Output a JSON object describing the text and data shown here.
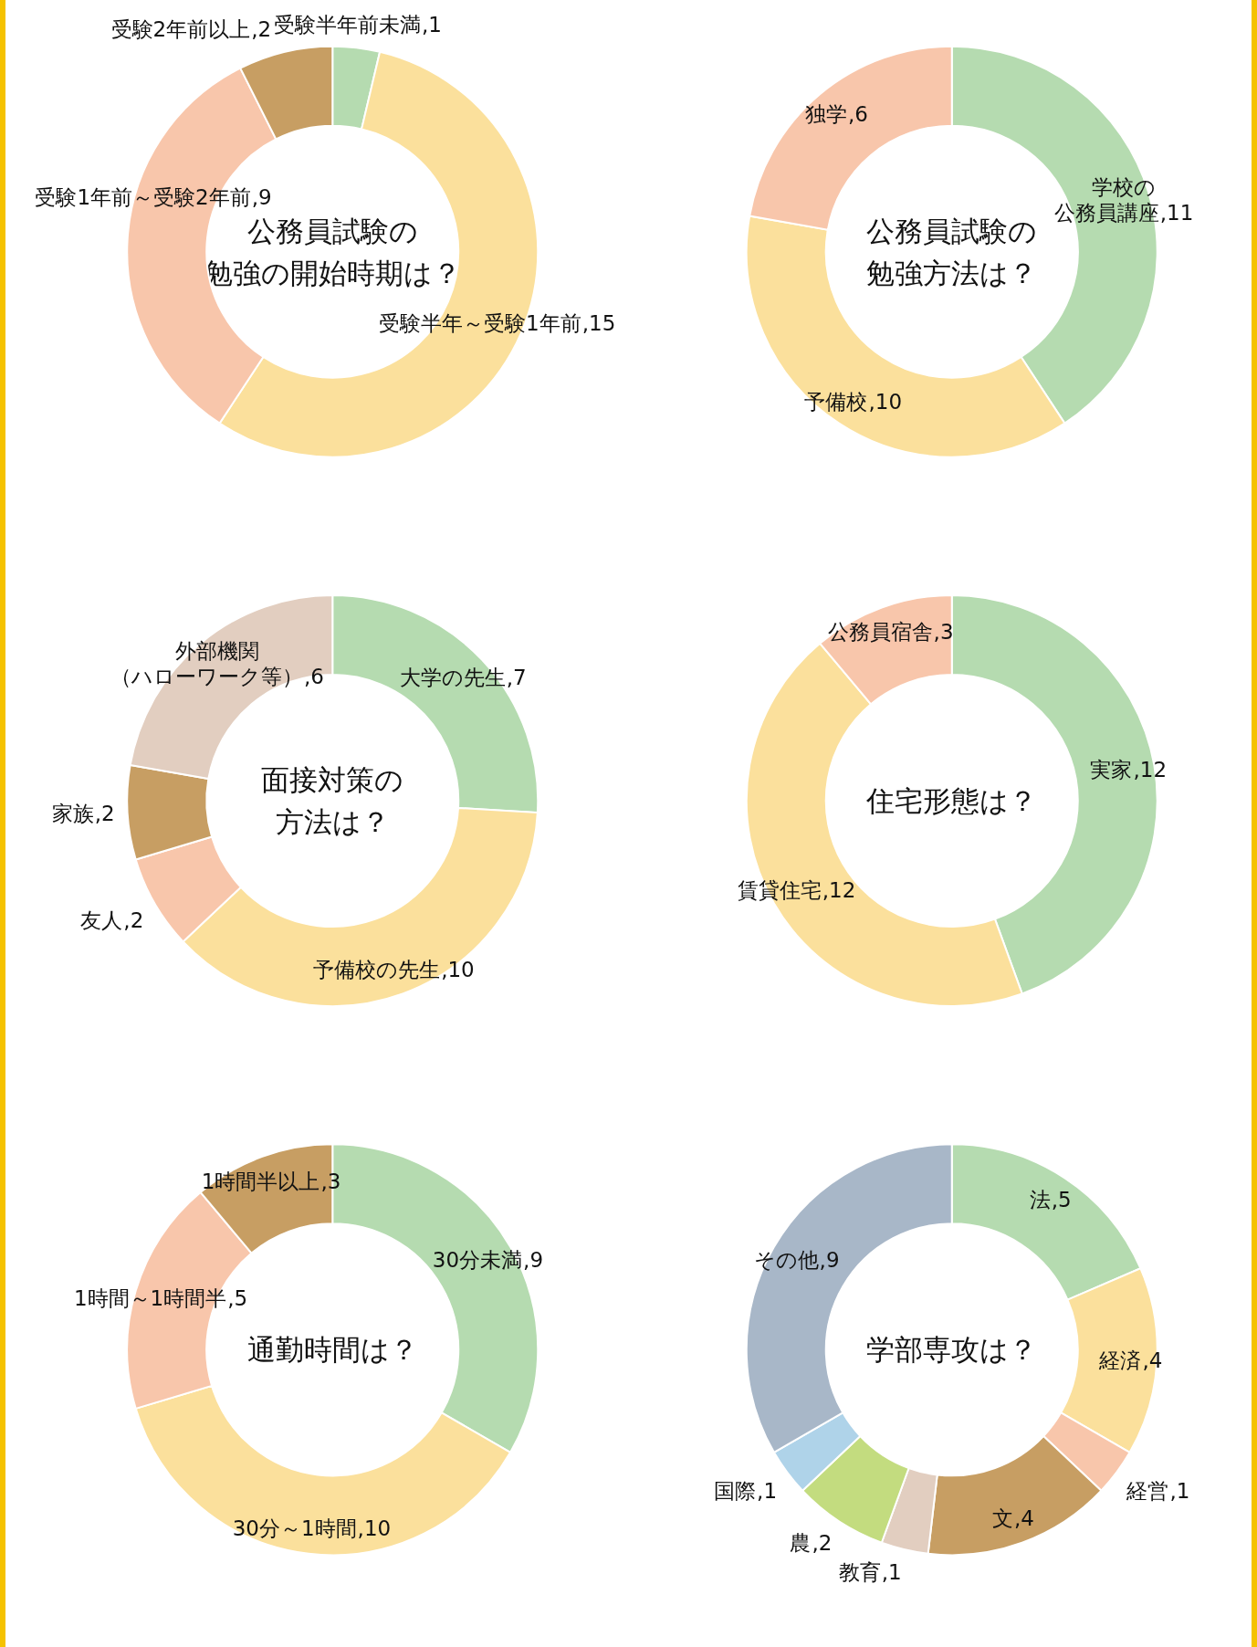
{
  "chart_data": [
    {
      "type": "donut",
      "title": "公務員試験の勉強の開始時期は？",
      "categories": [
        "受験半年前未満",
        "受験半年～受験1年前",
        "受験1年前～受験2年前",
        "受験2年前以上"
      ],
      "values": [
        1,
        15,
        9,
        2
      ],
      "value_labels": [
        ",1",
        ",15",
        ",9",
        ",2"
      ],
      "colors": [
        "#b5dbb0",
        "#fbe09c",
        "#f8c6ab",
        "#c79e63"
      ]
    },
    {
      "type": "donut",
      "title": "公務員試験の勉強方法は？",
      "categories": [
        "学校の公務員講座",
        "予備校",
        "独学"
      ],
      "values": [
        11,
        10,
        6
      ],
      "value_labels": [
        ",11",
        ",10",
        ",6"
      ],
      "colors": [
        "#b5dbb0",
        "#fbe09c",
        "#f8c6ab"
      ]
    },
    {
      "type": "donut",
      "title": "面接対策の方法は？",
      "categories": [
        "大学の先生",
        "予備校の先生",
        "友人",
        "家族",
        "外部機関（ハローワーク等）"
      ],
      "values": [
        7,
        10,
        2,
        2,
        6
      ],
      "value_labels": [
        ",7",
        ",10",
        ",2",
        ",2",
        ",6"
      ],
      "colors": [
        "#b5dbb0",
        "#fbe09c",
        "#f8c6ab",
        "#c79e63",
        "#e2cec0"
      ]
    },
    {
      "type": "donut",
      "title": "住宅形態は？",
      "categories": [
        "実家",
        "賃貸住宅",
        "公務員宿舎"
      ],
      "values": [
        12,
        12,
        3
      ],
      "value_labels": [
        ",12",
        ",12",
        ",3"
      ],
      "colors": [
        "#b5dbb0",
        "#fbe09c",
        "#f8c6ab"
      ]
    },
    {
      "type": "donut",
      "title": "通勤時間は？",
      "categories": [
        "30分未満",
        "30分～1時間",
        "1時間～1時間半",
        "1時間半以上"
      ],
      "values": [
        9,
        10,
        5,
        3
      ],
      "value_labels": [
        ",9",
        ",10",
        ",5",
        ",3"
      ],
      "colors": [
        "#b5dbb0",
        "#fbe09c",
        "#f8c6ab",
        "#c79e63"
      ]
    },
    {
      "type": "donut",
      "title": "学部専攻は？",
      "categories": [
        "法",
        "経済",
        "経営",
        "文",
        "教育",
        "農",
        "国際",
        "その他"
      ],
      "values": [
        5,
        4,
        1,
        4,
        1,
        2,
        1,
        9
      ],
      "value_labels": [
        ",5",
        ",4",
        ",1",
        ",4",
        ",1",
        ",2",
        ",1",
        ",9"
      ],
      "colors": [
        "#b5dbb0",
        "#fbe09c",
        "#f8c6ab",
        "#c79e63",
        "#e2cec0",
        "#c3dc7f",
        "#afd3e9",
        "#a8b7c8"
      ]
    }
  ]
}
